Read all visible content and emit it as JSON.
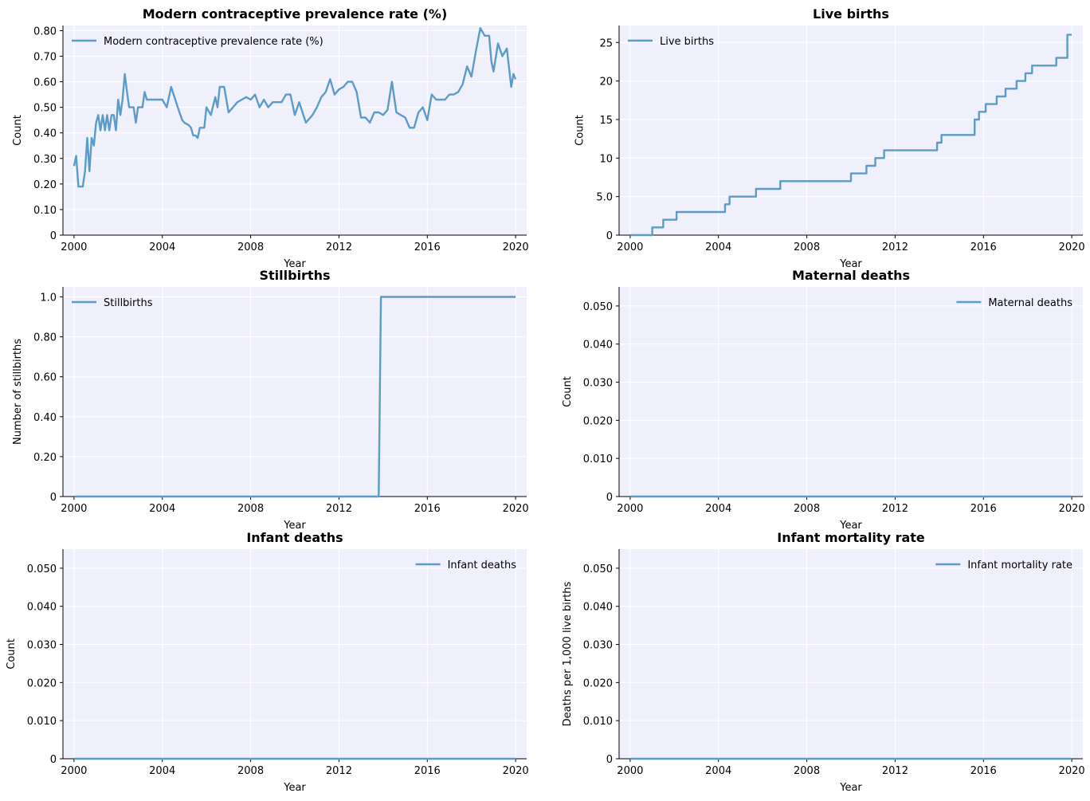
{
  "chart_data": [
    {
      "type": "line",
      "title": "Modern contraceptive prevalence rate (%)",
      "xlabel": "Year",
      "ylabel": "Count",
      "xlim": [
        1999.5,
        2020.5
      ],
      "ylim": [
        0,
        0.82
      ],
      "xticks": [
        2000,
        2004,
        2008,
        2012,
        2016,
        2020
      ],
      "xtick_labels": [
        "2000",
        "2004",
        "2008",
        "2012",
        "2016",
        "2020"
      ],
      "yticks": [
        0,
        0.1,
        0.2,
        0.3,
        0.4,
        0.5,
        0.6,
        0.7,
        0.8
      ],
      "ytick_labels": [
        "0",
        "0.10",
        "0.20",
        "0.30",
        "0.40",
        "0.50",
        "0.60",
        "0.70",
        "0.80"
      ],
      "legend": "upper left",
      "grid": true,
      "series": [
        {
          "name": "Modern contraceptive prevalence rate (%)",
          "color": "#5b9bc8",
          "x": [
            2000.0,
            2000.1,
            2000.2,
            2000.4,
            2000.5,
            2000.6,
            2000.7,
            2000.8,
            2000.9,
            2001.0,
            2001.1,
            2001.2,
            2001.3,
            2001.4,
            2001.5,
            2001.6,
            2001.7,
            2001.8,
            2001.9,
            2002.0,
            2002.1,
            2002.2,
            2002.3,
            2002.4,
            2002.5,
            2002.6,
            2002.7,
            2002.8,
            2002.9,
            2003.0,
            2003.1,
            2003.2,
            2003.3,
            2003.5,
            2003.6,
            2003.7,
            2003.8,
            2004.0,
            2004.2,
            2004.4,
            2004.7,
            2004.9,
            2005.0,
            2005.2,
            2005.3,
            2005.4,
            2005.5,
            2005.6,
            2005.7,
            2005.8,
            2005.9,
            2006.0,
            2006.2,
            2006.4,
            2006.5,
            2006.6,
            2006.8,
            2007.0,
            2007.2,
            2007.4,
            2007.6,
            2007.8,
            2008.0,
            2008.2,
            2008.4,
            2008.6,
            2008.8,
            2009.0,
            2009.2,
            2009.4,
            2009.6,
            2009.8,
            2010.0,
            2010.2,
            2010.5,
            2010.8,
            2011.0,
            2011.2,
            2011.4,
            2011.6,
            2011.8,
            2012.0,
            2012.2,
            2012.4,
            2012.6,
            2012.8,
            2013.0,
            2013.2,
            2013.4,
            2013.6,
            2013.8,
            2014.0,
            2014.2,
            2014.4,
            2014.5,
            2014.6,
            2014.8,
            2015.0,
            2015.2,
            2015.4,
            2015.6,
            2015.8,
            2016.0,
            2016.2,
            2016.4,
            2016.6,
            2016.8,
            2017.0,
            2017.2,
            2017.4,
            2017.6,
            2017.8,
            2018.0,
            2018.2,
            2018.4,
            2018.6,
            2018.8,
            2018.9,
            2019.0,
            2019.2,
            2019.4,
            2019.6,
            2019.8,
            2019.9,
            2020.0
          ],
          "y": [
            0.27,
            0.31,
            0.19,
            0.19,
            0.25,
            0.38,
            0.25,
            0.38,
            0.35,
            0.44,
            0.47,
            0.41,
            0.47,
            0.41,
            0.47,
            0.41,
            0.47,
            0.47,
            0.41,
            0.53,
            0.47,
            0.53,
            0.63,
            0.56,
            0.5,
            0.5,
            0.5,
            0.44,
            0.5,
            0.5,
            0.5,
            0.56,
            0.53,
            0.53,
            0.53,
            0.53,
            0.53,
            0.53,
            0.5,
            0.58,
            0.5,
            0.45,
            0.44,
            0.43,
            0.42,
            0.39,
            0.39,
            0.38,
            0.42,
            0.42,
            0.42,
            0.5,
            0.47,
            0.54,
            0.5,
            0.58,
            0.58,
            0.48,
            0.5,
            0.52,
            0.53,
            0.54,
            0.53,
            0.55,
            0.5,
            0.53,
            0.5,
            0.52,
            0.52,
            0.52,
            0.55,
            0.55,
            0.47,
            0.52,
            0.44,
            0.47,
            0.5,
            0.54,
            0.56,
            0.61,
            0.55,
            0.57,
            0.58,
            0.6,
            0.6,
            0.56,
            0.46,
            0.46,
            0.44,
            0.48,
            0.48,
            0.47,
            0.49,
            0.6,
            0.54,
            0.48,
            0.47,
            0.46,
            0.42,
            0.42,
            0.48,
            0.5,
            0.45,
            0.55,
            0.53,
            0.53,
            0.53,
            0.55,
            0.55,
            0.56,
            0.59,
            0.66,
            0.62,
            0.72,
            0.81,
            0.78,
            0.78,
            0.68,
            0.64,
            0.75,
            0.7,
            0.73,
            0.58,
            0.63,
            0.61
          ]
        }
      ]
    },
    {
      "type": "line",
      "title": "Live births",
      "xlabel": "Year",
      "ylabel": "Count",
      "xlim": [
        1999.5,
        2020.5
      ],
      "ylim": [
        0,
        27.2
      ],
      "xticks": [
        2000,
        2004,
        2008,
        2012,
        2016,
        2020
      ],
      "xtick_labels": [
        "2000",
        "2004",
        "2008",
        "2012",
        "2016",
        "2020"
      ],
      "yticks": [
        0,
        5,
        10,
        15,
        20,
        25
      ],
      "ytick_labels": [
        "0",
        "5.0",
        "10",
        "15",
        "20",
        "25"
      ],
      "legend": "upper left",
      "grid": true,
      "series": [
        {
          "name": "Live births",
          "color": "#5b9bc8",
          "step": true,
          "x": [
            2000.0,
            2001.0,
            2001.5,
            2001.8,
            2002.1,
            2004.3,
            2004.5,
            2005.7,
            2006.8,
            2010.0,
            2010.7,
            2011.1,
            2011.5,
            2013.9,
            2014.1,
            2015.6,
            2015.8,
            2016.1,
            2016.6,
            2017.0,
            2017.5,
            2017.9,
            2018.2,
            2018.6,
            2019.3,
            2019.8,
            2020.0
          ],
          "y": [
            0,
            1,
            2,
            2,
            3,
            4,
            5,
            6,
            7,
            8,
            9,
            10,
            11,
            12,
            13,
            15,
            16,
            17,
            18,
            19,
            20,
            21,
            22,
            22,
            23,
            26,
            26
          ]
        }
      ]
    },
    {
      "type": "line",
      "title": "Stillbirths",
      "xlabel": "Year",
      "ylabel": "Number of stillbirths",
      "xlim": [
        1999.5,
        2020.5
      ],
      "ylim": [
        0,
        1.05
      ],
      "xticks": [
        2000,
        2004,
        2008,
        2012,
        2016,
        2020
      ],
      "xtick_labels": [
        "2000",
        "2004",
        "2008",
        "2012",
        "2016",
        "2020"
      ],
      "yticks": [
        0,
        0.2,
        0.4,
        0.6,
        0.8,
        1.0
      ],
      "ytick_labels": [
        "0",
        "0.20",
        "0.40",
        "0.60",
        "0.80",
        "1.0"
      ],
      "legend": "upper left",
      "grid": true,
      "series": [
        {
          "name": "Stillbirths",
          "color": "#5b9bc8",
          "x": [
            2000.0,
            2013.8,
            2013.9,
            2020.0
          ],
          "y": [
            0,
            0,
            1,
            1
          ]
        }
      ]
    },
    {
      "type": "line",
      "title": "Maternal deaths",
      "xlabel": "Year",
      "ylabel": "Count",
      "xlim": [
        1999.5,
        2020.5
      ],
      "ylim": [
        0,
        0.055
      ],
      "xticks": [
        2000,
        2004,
        2008,
        2012,
        2016,
        2020
      ],
      "xtick_labels": [
        "2000",
        "2004",
        "2008",
        "2012",
        "2016",
        "2020"
      ],
      "yticks": [
        0,
        0.01,
        0.02,
        0.03,
        0.04,
        0.05
      ],
      "ytick_labels": [
        "0",
        "0.010",
        "0.020",
        "0.030",
        "0.040",
        "0.050"
      ],
      "legend": "upper right",
      "grid": true,
      "series": [
        {
          "name": "Maternal deaths",
          "color": "#5b9bc8",
          "x": [
            2000.0,
            2020.0
          ],
          "y": [
            0,
            0
          ]
        }
      ]
    },
    {
      "type": "line",
      "title": "Infant deaths",
      "xlabel": "Year",
      "ylabel": "Count",
      "xlim": [
        1999.5,
        2020.5
      ],
      "ylim": [
        0,
        0.055
      ],
      "xticks": [
        2000,
        2004,
        2008,
        2012,
        2016,
        2020
      ],
      "xtick_labels": [
        "2000",
        "2004",
        "2008",
        "2012",
        "2016",
        "2020"
      ],
      "yticks": [
        0,
        0.01,
        0.02,
        0.03,
        0.04,
        0.05
      ],
      "ytick_labels": [
        "0",
        "0.010",
        "0.020",
        "0.030",
        "0.040",
        "0.050"
      ],
      "legend": "upper right",
      "grid": true,
      "series": [
        {
          "name": "Infant deaths",
          "color": "#5b9bc8",
          "x": [
            2000.0,
            2020.0
          ],
          "y": [
            0,
            0
          ]
        }
      ]
    },
    {
      "type": "line",
      "title": "Infant mortality rate",
      "xlabel": "Year",
      "ylabel": "Deaths per 1,000 live births",
      "xlim": [
        1999.5,
        2020.5
      ],
      "ylim": [
        0,
        0.055
      ],
      "xticks": [
        2000,
        2004,
        2008,
        2012,
        2016,
        2020
      ],
      "xtick_labels": [
        "2000",
        "2004",
        "2008",
        "2012",
        "2016",
        "2020"
      ],
      "yticks": [
        0,
        0.01,
        0.02,
        0.03,
        0.04,
        0.05
      ],
      "ytick_labels": [
        "0",
        "0.010",
        "0.020",
        "0.030",
        "0.040",
        "0.050"
      ],
      "legend": "upper right",
      "grid": true,
      "series": [
        {
          "name": "Infant mortality rate",
          "color": "#5b9bc8",
          "x": [
            2000.0,
            2020.0
          ],
          "y": [
            0,
            0
          ]
        }
      ]
    }
  ]
}
